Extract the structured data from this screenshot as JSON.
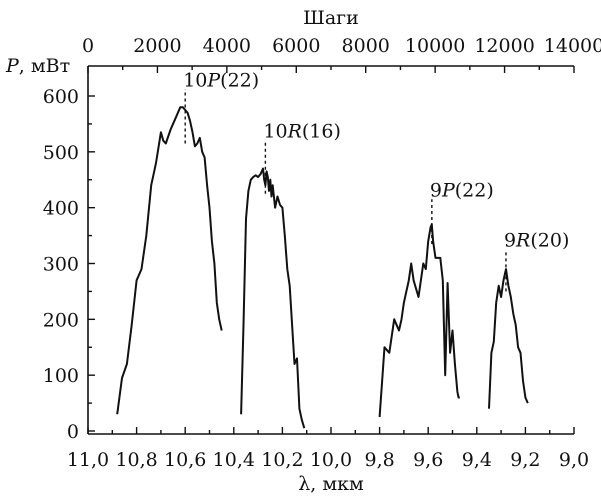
{
  "chart_data": {
    "type": "line",
    "ylabel": "P, мВт",
    "xlabel": "λ, мкм",
    "x2label": "Шаги",
    "xlim": [
      11.0,
      9.0
    ],
    "ylim": [
      0,
      650
    ],
    "x2lim": [
      0,
      14000
    ],
    "grid": false,
    "x_ticks": [
      "11,0",
      "10,8",
      "10,6",
      "10,4",
      "10,2",
      "10,0",
      "9,8",
      "9,6",
      "9,4",
      "9,2",
      "9,0"
    ],
    "x2_ticks": [
      "0",
      "2000",
      "4000",
      "6000",
      "8000",
      "10000",
      "12000",
      "14000"
    ],
    "y_ticks": [
      "0",
      "100",
      "200",
      "300",
      "400",
      "500",
      "600"
    ],
    "series": [
      {
        "x": [
          10.88,
          10.86,
          10.84,
          10.82,
          10.8,
          10.78,
          10.76,
          10.74,
          10.73,
          10.72,
          10.7,
          10.69,
          10.68,
          10.66,
          10.64,
          10.62,
          10.61,
          10.6,
          10.59,
          10.58,
          10.57,
          10.56,
          10.55,
          10.54,
          10.53,
          10.52,
          10.51,
          10.5,
          10.49,
          10.48,
          10.47,
          10.46,
          10.45
        ],
        "y": [
          30,
          95,
          120,
          190,
          270,
          290,
          350,
          440,
          460,
          480,
          535,
          520,
          515,
          540,
          560,
          580,
          580,
          575,
          570,
          555,
          535,
          510,
          515,
          525,
          500,
          490,
          440,
          400,
          340,
          300,
          230,
          200,
          180
        ]
      },
      {
        "x": [
          10.37,
          10.36,
          10.35,
          10.34,
          10.33,
          10.32,
          10.31,
          10.3,
          10.29,
          10.28,
          10.275,
          10.27,
          10.265,
          10.26,
          10.255,
          10.25,
          10.245,
          10.24,
          10.23,
          10.22,
          10.21,
          10.2,
          10.19,
          10.18,
          10.17,
          10.16,
          10.15,
          10.14,
          10.13,
          10.12,
          10.11
        ],
        "y": [
          30,
          190,
          380,
          430,
          450,
          455,
          458,
          455,
          460,
          470,
          450,
          440,
          465,
          455,
          430,
          450,
          420,
          440,
          400,
          420,
          405,
          400,
          350,
          290,
          260,
          190,
          120,
          130,
          40,
          20,
          5
        ]
      },
      {
        "x": [
          9.8,
          9.78,
          9.76,
          9.74,
          9.72,
          9.71,
          9.7,
          9.68,
          9.67,
          9.66,
          9.64,
          9.62,
          9.61,
          9.6,
          9.59,
          9.585,
          9.58,
          9.57,
          9.56,
          9.55,
          9.54,
          9.53,
          9.52,
          9.51,
          9.5,
          9.49,
          9.48,
          9.475,
          9.47
        ],
        "y": [
          25,
          150,
          140,
          200,
          180,
          200,
          230,
          270,
          300,
          270,
          240,
          300,
          290,
          340,
          365,
          370,
          340,
          310,
          310,
          310,
          270,
          100,
          265,
          140,
          180,
          120,
          70,
          60,
          60
        ]
      },
      {
        "x": [
          9.35,
          9.34,
          9.33,
          9.32,
          9.31,
          9.3,
          9.29,
          9.28,
          9.27,
          9.26,
          9.25,
          9.24,
          9.23,
          9.22,
          9.21,
          9.2,
          9.19
        ],
        "y": [
          40,
          140,
          160,
          230,
          260,
          240,
          270,
          290,
          260,
          240,
          210,
          190,
          150,
          140,
          90,
          60,
          50
        ]
      }
    ],
    "annotations": [
      {
        "text": "10P(22)",
        "parts": [
          "10",
          "P",
          "(22)"
        ],
        "x": 10.6,
        "y": 583,
        "marker_from": 515,
        "marker_to": 612
      },
      {
        "text": "10R(16)",
        "parts": [
          "10",
          "R",
          "(16)"
        ],
        "x": 10.27,
        "y": 470,
        "marker_from": 425,
        "marker_to": 520
      },
      {
        "text": "9P(22)",
        "parts": [
          "9",
          "P",
          "(22)"
        ],
        "x": 9.585,
        "y": 370,
        "marker_from": 335,
        "marker_to": 415
      },
      {
        "text": "9R(20)",
        "parts": [
          "9",
          "R",
          "(20)"
        ],
        "x": 9.28,
        "y": 290,
        "marker_from": 250,
        "marker_to": 325
      }
    ]
  }
}
